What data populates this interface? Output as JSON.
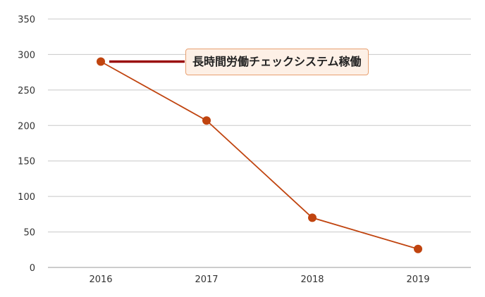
{
  "chart_data": {
    "type": "line",
    "categories": [
      "2016",
      "2017",
      "2018",
      "2019"
    ],
    "series": [
      {
        "values": [
          290,
          207,
          70,
          26
        ]
      }
    ],
    "ylim": [
      0,
      350
    ],
    "yticks": [
      0,
      50,
      100,
      150,
      200,
      250,
      300,
      350
    ],
    "grid": true,
    "legend": "none",
    "annotations": [
      {
        "text": "長時間労働チェックシステム稼働",
        "category": "2016"
      }
    ]
  },
  "colors": {
    "series": "#c0440f",
    "annotation_line": "#9a0d0d",
    "annotation_border": "#e8a070",
    "annotation_bg": "#fdf0e6"
  }
}
